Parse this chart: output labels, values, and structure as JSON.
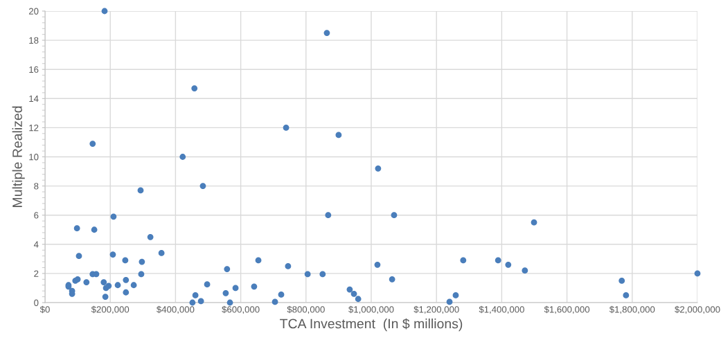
{
  "chart_data": {
    "type": "scatter",
    "xlabel": "TCA Investment  (In $ millions)",
    "ylabel": "Multiple Realized",
    "x": [
      182600,
      864000,
      458000,
      146000,
      739000,
      900000,
      422000,
      1021000,
      484000,
      293000,
      210000,
      868000,
      1070000,
      98000,
      151000,
      1499000,
      323000,
      357000,
      208000,
      104000,
      246000,
      297000,
      558000,
      654000,
      745000,
      1282000,
      1389000,
      1420000,
      1471000,
      1019000,
      2000000,
      146000,
      157000,
      295000,
      805000,
      851000,
      1064000,
      1768000,
      72000,
      72000,
      83000,
      83000,
      93000,
      100000,
      127000,
      180000,
      195000,
      187000,
      223000,
      248000,
      272000,
      248000,
      185000,
      497000,
      584000,
      641000,
      554000,
      461000,
      478000,
      452000,
      567000,
      705000,
      724000,
      934000,
      947000,
      960000,
      1259000,
      1240000,
      1781000
    ],
    "series": [
      {
        "color": "#4a7ebb",
        "values": [
          20,
          18.5,
          14.7,
          10.9,
          12.0,
          11.5,
          10.0,
          9.2,
          8.0,
          7.7,
          5.9,
          6.0,
          6.0,
          5.1,
          5.0,
          5.5,
          4.5,
          3.4,
          3.3,
          3.2,
          2.9,
          2.8,
          2.3,
          2.9,
          2.5,
          2.9,
          2.9,
          2.6,
          2.2,
          2.6,
          2.0,
          1.95,
          1.95,
          1.95,
          1.95,
          1.95,
          1.6,
          1.5,
          1.2,
          1.1,
          0.8,
          0.6,
          1.5,
          1.6,
          1.4,
          1.4,
          1.15,
          1.0,
          1.2,
          1.55,
          1.2,
          0.7,
          0.4,
          1.25,
          1.0,
          1.1,
          0.65,
          0.5,
          0.1,
          0.0,
          0.0,
          0.05,
          0.55,
          0.9,
          0.6,
          0.25,
          0.5,
          0.05,
          0.5
        ]
      }
    ],
    "xlim": [
      0,
      2000000
    ],
    "xticks": [
      {
        "value": 0,
        "label": "$0"
      },
      {
        "value": 200000,
        "label": "$200,000"
      },
      {
        "value": 400000,
        "label": "$400,000"
      },
      {
        "value": 600000,
        "label": "$600,000"
      },
      {
        "value": 800000,
        "label": "$800,000"
      },
      {
        "value": 1000000,
        "label": "$1,000,000"
      },
      {
        "value": 1200000,
        "label": "$1,200,000"
      },
      {
        "value": 1400000,
        "label": "$1,400,000"
      },
      {
        "value": 1600000,
        "label": "$1,600,000"
      },
      {
        "value": 1800000,
        "label": "$1,800,000"
      },
      {
        "value": 2000000,
        "label": "$2,000,000"
      }
    ],
    "ylim": [
      0,
      20
    ],
    "yticks": [
      0,
      2,
      4,
      6,
      8,
      10,
      12,
      14,
      16,
      18,
      20
    ],
    "grid": true,
    "marker": "circle",
    "legend": false
  }
}
